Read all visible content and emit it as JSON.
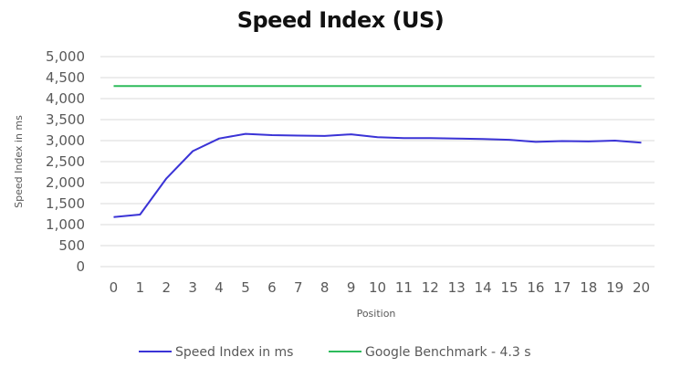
{
  "chart_data": {
    "type": "line",
    "title": "Speed Index (US)",
    "xlabel": "Position",
    "ylabel": "Speed Index in ms",
    "x": [
      0,
      1,
      2,
      3,
      4,
      5,
      6,
      7,
      8,
      9,
      10,
      11,
      12,
      13,
      14,
      15,
      16,
      17,
      18,
      19,
      20
    ],
    "ylim": [
      0,
      5000
    ],
    "yticks": [
      "0",
      "500",
      "1,000",
      "1,500",
      "2,000",
      "2,500",
      "3,000",
      "3,500",
      "4,000",
      "4,500",
      "5,000"
    ],
    "grid": true,
    "legend_position": "bottom",
    "series": [
      {
        "name": "Speed Index in ms",
        "color": "#3a33d6",
        "values": [
          1180,
          1240,
          2100,
          2750,
          3050,
          3160,
          3130,
          3120,
          3110,
          3150,
          3080,
          3060,
          3060,
          3050,
          3040,
          3020,
          2970,
          2990,
          2980,
          3000,
          2950
        ]
      },
      {
        "name": "Google Benchmark - 4.3 s",
        "color": "#2dbb5b",
        "values": [
          4300,
          4300,
          4300,
          4300,
          4300,
          4300,
          4300,
          4300,
          4300,
          4300,
          4300,
          4300,
          4300,
          4300,
          4300,
          4300,
          4300,
          4300,
          4300,
          4300,
          4300
        ]
      }
    ]
  }
}
